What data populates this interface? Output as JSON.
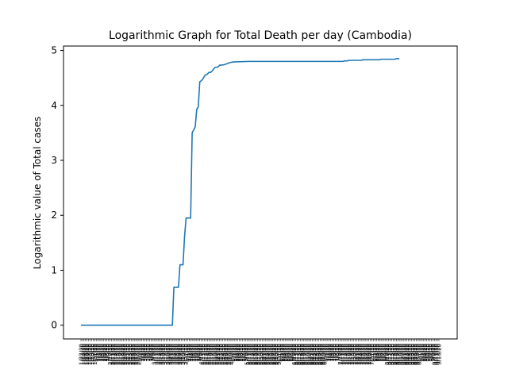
{
  "chart_data": {
    "type": "line",
    "title": "Logarithmic Graph for Total Death per day (Cambodia)",
    "xlabel": "",
    "ylabel": "Logarithmic value of Total cases",
    "ylim": [
      -0.25,
      5.08
    ],
    "yticks": [
      0,
      1,
      2,
      3,
      4,
      5
    ],
    "grid": false,
    "legend": "none",
    "color": "#1f77b4",
    "x": [
      "1/22/20",
      "9/14/20"
    ],
    "points": [
      [
        0,
        0.0
      ],
      [
        60,
        0.0
      ],
      [
        61,
        0.69
      ],
      [
        64,
        0.69
      ],
      [
        65,
        1.1
      ],
      [
        67,
        1.1
      ],
      [
        68,
        1.61
      ],
      [
        69,
        1.95
      ],
      [
        72,
        1.95
      ],
      [
        73,
        3.5
      ],
      [
        75,
        3.61
      ],
      [
        76,
        3.93
      ],
      [
        77,
        3.97
      ],
      [
        78,
        4.43
      ],
      [
        79,
        4.45
      ],
      [
        80,
        4.48
      ],
      [
        81,
        4.53
      ],
      [
        82,
        4.56
      ],
      [
        83,
        4.57
      ],
      [
        84,
        4.6
      ],
      [
        85,
        4.6
      ],
      [
        86,
        4.62
      ],
      [
        87,
        4.66
      ],
      [
        88,
        4.69
      ],
      [
        90,
        4.7
      ],
      [
        91,
        4.73
      ],
      [
        94,
        4.74
      ],
      [
        95,
        4.75
      ],
      [
        96,
        4.76
      ],
      [
        98,
        4.78
      ],
      [
        100,
        4.79
      ],
      [
        110,
        4.8
      ],
      [
        120,
        4.8
      ],
      [
        130,
        4.8
      ],
      [
        140,
        4.8
      ],
      [
        150,
        4.8
      ],
      [
        160,
        4.8
      ],
      [
        170,
        4.8
      ],
      [
        172,
        4.8
      ],
      [
        173,
        4.81
      ],
      [
        175,
        4.81
      ],
      [
        176,
        4.82
      ],
      [
        184,
        4.82
      ],
      [
        185,
        4.83
      ],
      [
        196,
        4.83
      ],
      [
        197,
        4.84
      ],
      [
        206,
        4.84
      ],
      [
        207,
        4.85
      ],
      [
        209,
        4.85
      ]
    ]
  }
}
